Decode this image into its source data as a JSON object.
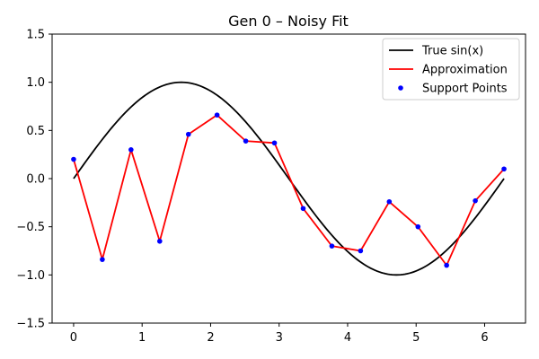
{
  "chart_data": {
    "type": "line",
    "title": "Gen 0 – Noisy Fit",
    "xlabel": "",
    "ylabel": "",
    "xlim": [
      -0.314,
      6.597
    ],
    "ylim": [
      -1.5,
      1.5
    ],
    "xticks": [
      0,
      1,
      2,
      3,
      4,
      5,
      6
    ],
    "xtick_labels": [
      "0",
      "1",
      "2",
      "3",
      "4",
      "5",
      "6"
    ],
    "yticks": [
      -1.5,
      -1.0,
      -0.5,
      0.0,
      0.5,
      1.0,
      1.5
    ],
    "ytick_labels": [
      "−1.5",
      "−1.0",
      "−0.5",
      "0.0",
      "0.5",
      "1.0",
      "1.5"
    ],
    "grid": false,
    "legend_position": "upper right",
    "series": [
      {
        "name": "True sin(x)",
        "kind": "line",
        "color": "#000000",
        "function": "sin",
        "x_range": [
          0,
          6.283
        ]
      },
      {
        "name": "Approximation",
        "kind": "line",
        "color": "#ff0000",
        "x": [
          0.0,
          0.419,
          0.838,
          1.257,
          1.676,
          2.094,
          2.513,
          2.932,
          3.351,
          3.77,
          4.189,
          4.608,
          5.027,
          5.445,
          5.864,
          6.283
        ],
        "y": [
          0.2,
          -0.84,
          0.3,
          -0.65,
          0.46,
          0.66,
          0.39,
          0.37,
          -0.31,
          -0.7,
          -0.75,
          -0.24,
          -0.5,
          -0.9,
          -0.23,
          0.1
        ]
      },
      {
        "name": "Support Points",
        "kind": "scatter",
        "color": "#0000ff",
        "x": [
          0.0,
          0.419,
          0.838,
          1.257,
          1.676,
          2.094,
          2.513,
          2.932,
          3.351,
          3.77,
          4.189,
          4.608,
          5.027,
          5.445,
          5.864,
          6.283
        ],
        "y": [
          0.2,
          -0.84,
          0.3,
          -0.65,
          0.46,
          0.66,
          0.39,
          0.37,
          -0.31,
          -0.7,
          -0.75,
          -0.24,
          -0.5,
          -0.9,
          -0.23,
          0.1
        ]
      }
    ]
  }
}
